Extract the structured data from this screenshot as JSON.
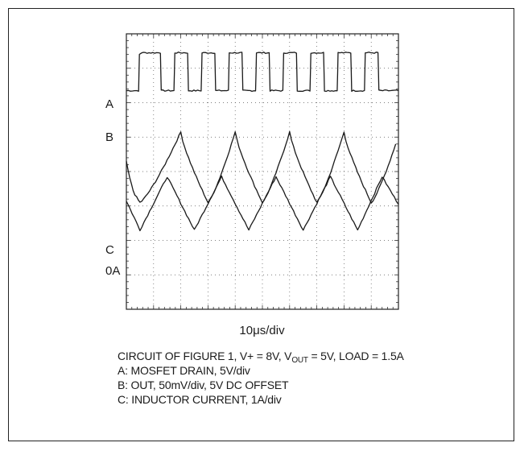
{
  "chart_data": {
    "type": "line",
    "title": "",
    "xlabel": "10μs/div",
    "ylabel": "",
    "grid": true,
    "divisions": {
      "x": 10,
      "y": 8
    },
    "channel_labels": [
      "A",
      "B",
      "C",
      "0A"
    ],
    "series": [
      {
        "name": "A",
        "kind": "square",
        "x_div": [
          0,
          0.45,
          0.48,
          0.55,
          1.25,
          1.28,
          1.75,
          1.78,
          2.25,
          2.28,
          2.75,
          2.78,
          3.25,
          3.28,
          3.75,
          3.78,
          4.25,
          4.28,
          4.75,
          4.78,
          5.25,
          5.28,
          5.75,
          5.78,
          6.25,
          6.28,
          6.75,
          6.78,
          7.25,
          7.28,
          7.75,
          7.78,
          8.25,
          8.28,
          8.75,
          8.78,
          9.25,
          9.28,
          10.0
        ],
        "y_div": [
          -0.55,
          -0.55,
          0.5,
          0.55,
          0.55,
          -0.55,
          -0.55,
          0.55,
          0.55,
          -0.55,
          -0.55,
          0.55,
          0.55,
          -0.55,
          -0.55,
          0.55,
          0.55,
          -0.55,
          -0.55,
          0.55,
          0.55,
          -0.55,
          -0.55,
          0.55,
          0.55,
          -0.55,
          -0.55,
          0.55,
          0.55,
          -0.55,
          -0.55,
          0.55,
          0.55,
          -0.55,
          -0.55,
          0.55,
          0.55,
          -0.55,
          -0.55
        ]
      },
      {
        "name": "B",
        "kind": "ripple",
        "x_div": [
          0,
          0.25,
          0.5,
          2.0,
          3.0,
          4.0,
          5.0,
          6.0,
          7.0,
          8.0,
          9.0,
          9.9
        ],
        "y_div": [
          0.1,
          -0.75,
          -1.1,
          0.95,
          -1.1,
          0.95,
          -1.1,
          0.95,
          -1.1,
          0.95,
          -1.1,
          0.6
        ]
      },
      {
        "name": "C",
        "kind": "triangle",
        "x_div": [
          0,
          0.5,
          1.5,
          2.5,
          3.5,
          4.5,
          5.5,
          6.5,
          7.5,
          8.5,
          9.4,
          10.0
        ],
        "y_div": [
          0.15,
          -0.7,
          0.85,
          -0.7,
          0.85,
          -0.7,
          0.85,
          -0.7,
          0.85,
          -0.7,
          0.85,
          0.05
        ]
      }
    ]
  },
  "caption": {
    "lines": [
      "CIRCUIT OF FIGURE 1, V+ = 8V, V",
      "A: MOSFET DRAIN, 5V/div",
      "B: OUT, 50mV/div, 5V DC OFFSET",
      "C: INDUCTOR CURRENT, 1A/div"
    ],
    "line1_sub": "OUT",
    "line1_tail": " = 5V, LOAD = 1.5A"
  }
}
